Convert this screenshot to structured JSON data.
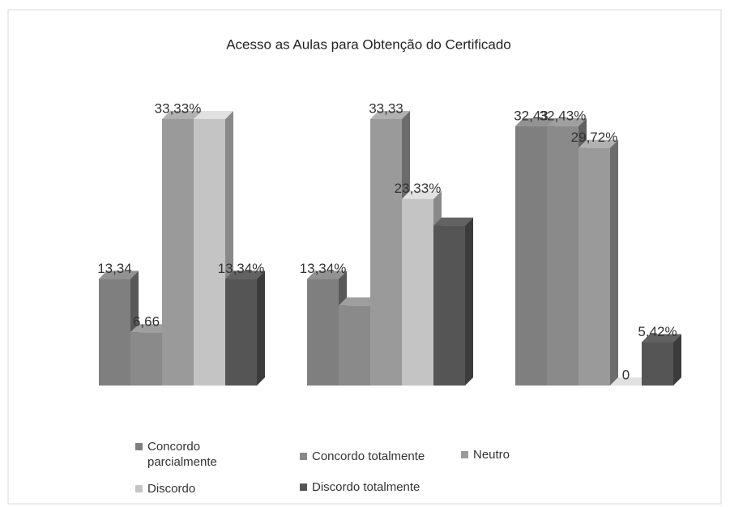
{
  "chart_data": {
    "type": "bar3d",
    "title": "Acesso as Aulas para Obtenção do Certificado",
    "categories": [
      null,
      null,
      null
    ],
    "series": [
      {
        "name": "Concordo parcialmente",
        "color": "#7f7f7f",
        "values": [
          13.34,
          13.34,
          32.43
        ],
        "value_labels": [
          "13,34",
          "13,34%",
          "32,43"
        ]
      },
      {
        "name": "Concordo totalmente",
        "color": "#8a8a8a",
        "values": [
          6.66,
          10,
          32.43
        ],
        "value_labels": [
          "6,66",
          null,
          "32,43%"
        ]
      },
      {
        "name": "Neutro",
        "color": "#9a9a9a",
        "values": [
          33.33,
          33.33,
          29.72
        ],
        "value_labels": [
          "33,33%",
          "33,33",
          "29,72%"
        ]
      },
      {
        "name": "Discordo",
        "color": "#c4c4c4",
        "values": [
          33.33,
          23.33,
          0
        ],
        "value_labels": [
          null,
          "23,33%",
          "0"
        ]
      },
      {
        "name": "Discordo totalmente",
        "color": "#555555",
        "values": [
          13.34,
          20,
          5.42
        ],
        "value_labels": [
          "13,34%",
          null,
          "5,42%"
        ]
      }
    ]
  }
}
